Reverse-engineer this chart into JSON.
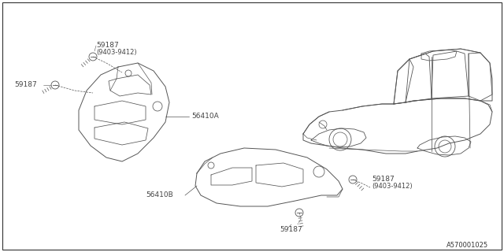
{
  "background_color": "#ffffff",
  "border_color": "#000000",
  "diagram_id": "A570001025",
  "line_color": "#555555",
  "line_width": 0.7,
  "font_size": 6.5,
  "font_color": "#444444"
}
